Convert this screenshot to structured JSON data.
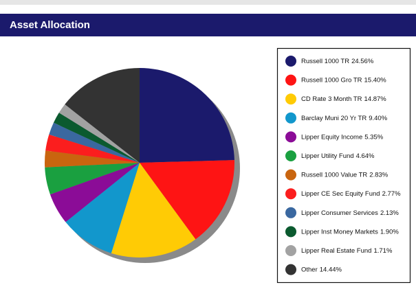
{
  "chart_data": {
    "type": "pie",
    "title": "Asset Allocation",
    "categories": [
      "Russell 1000 TR",
      "Russell 1000 Gro TR",
      "CD Rate 3 Month TR",
      "Barclay Muni 20 Yr TR",
      "Lipper Equity Income",
      "Lipper Utility Fund",
      "Russell 1000 Value TR",
      "Lipper CE Sec Equity Fund",
      "Lipper Consumer Services",
      "Lipper Inst Money Markets",
      "Lipper Real Estate Fund",
      "Other"
    ],
    "values": [
      24.56,
      15.4,
      14.87,
      9.4,
      5.35,
      4.64,
      2.83,
      2.77,
      2.13,
      1.9,
      1.71,
      14.44
    ],
    "value_labels": [
      "24.56%",
      "15.40%",
      "14.87%",
      "9.40%",
      "5.35%",
      "4.64%",
      "2.83%",
      "2.77%",
      "2.13%",
      "1.90%",
      "1.71%",
      "14.44%"
    ],
    "colors": [
      "#1b1a6c",
      "#fe1414",
      "#ffcb05",
      "#1297cc",
      "#8b0c97",
      "#1aa040",
      "#c9650f",
      "#fb1e1e",
      "#3a68a0",
      "#0b5a2f",
      "#a2a2a2",
      "#333333"
    ],
    "legend": "right"
  }
}
